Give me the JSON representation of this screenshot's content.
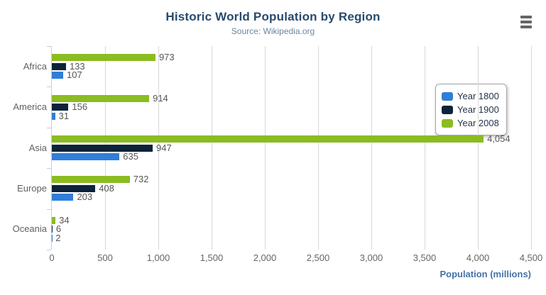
{
  "chart_data": {
    "type": "bar",
    "orientation": "horizontal",
    "title": "Historic World Population by Region",
    "subtitle": "Source: Wikipedia.org",
    "categories": [
      "Africa",
      "America",
      "Asia",
      "Europe",
      "Oceania"
    ],
    "series": [
      {
        "name": "Year 1800",
        "color": "#2f7ed8",
        "values": [
          107,
          31,
          635,
          203,
          2
        ]
      },
      {
        "name": "Year 1900",
        "color": "#0d233a",
        "values": [
          133,
          156,
          947,
          408,
          6
        ]
      },
      {
        "name": "Year 2008",
        "color": "#8bbc21",
        "values": [
          973,
          914,
          4054,
          732,
          34
        ]
      }
    ],
    "bar_order_top_to_bottom": [
      "Year 2008",
      "Year 1900",
      "Year 1800"
    ],
    "xlabel": "Population (millions)",
    "xlim": [
      0,
      4500
    ],
    "x_ticks": [
      0,
      500,
      1000,
      1500,
      2000,
      2500,
      3000,
      3500,
      4000,
      4500
    ],
    "tick_format": "thousands-comma",
    "grid": true,
    "data_labels": true,
    "legend_position": "right"
  },
  "export_menu": {
    "icon": "hamburger-menu-icon"
  },
  "colors": {
    "title": "#274b6d",
    "subtitle": "#6d869f",
    "axis_line": "#c0d0e0",
    "gridline": "#d8d8d8",
    "axis_label": "#666666",
    "category_label": "#606060",
    "data_label": "#555555",
    "axis_title": "#4572a7",
    "legend_text": "#243447",
    "menu_icon": "#666666"
  }
}
